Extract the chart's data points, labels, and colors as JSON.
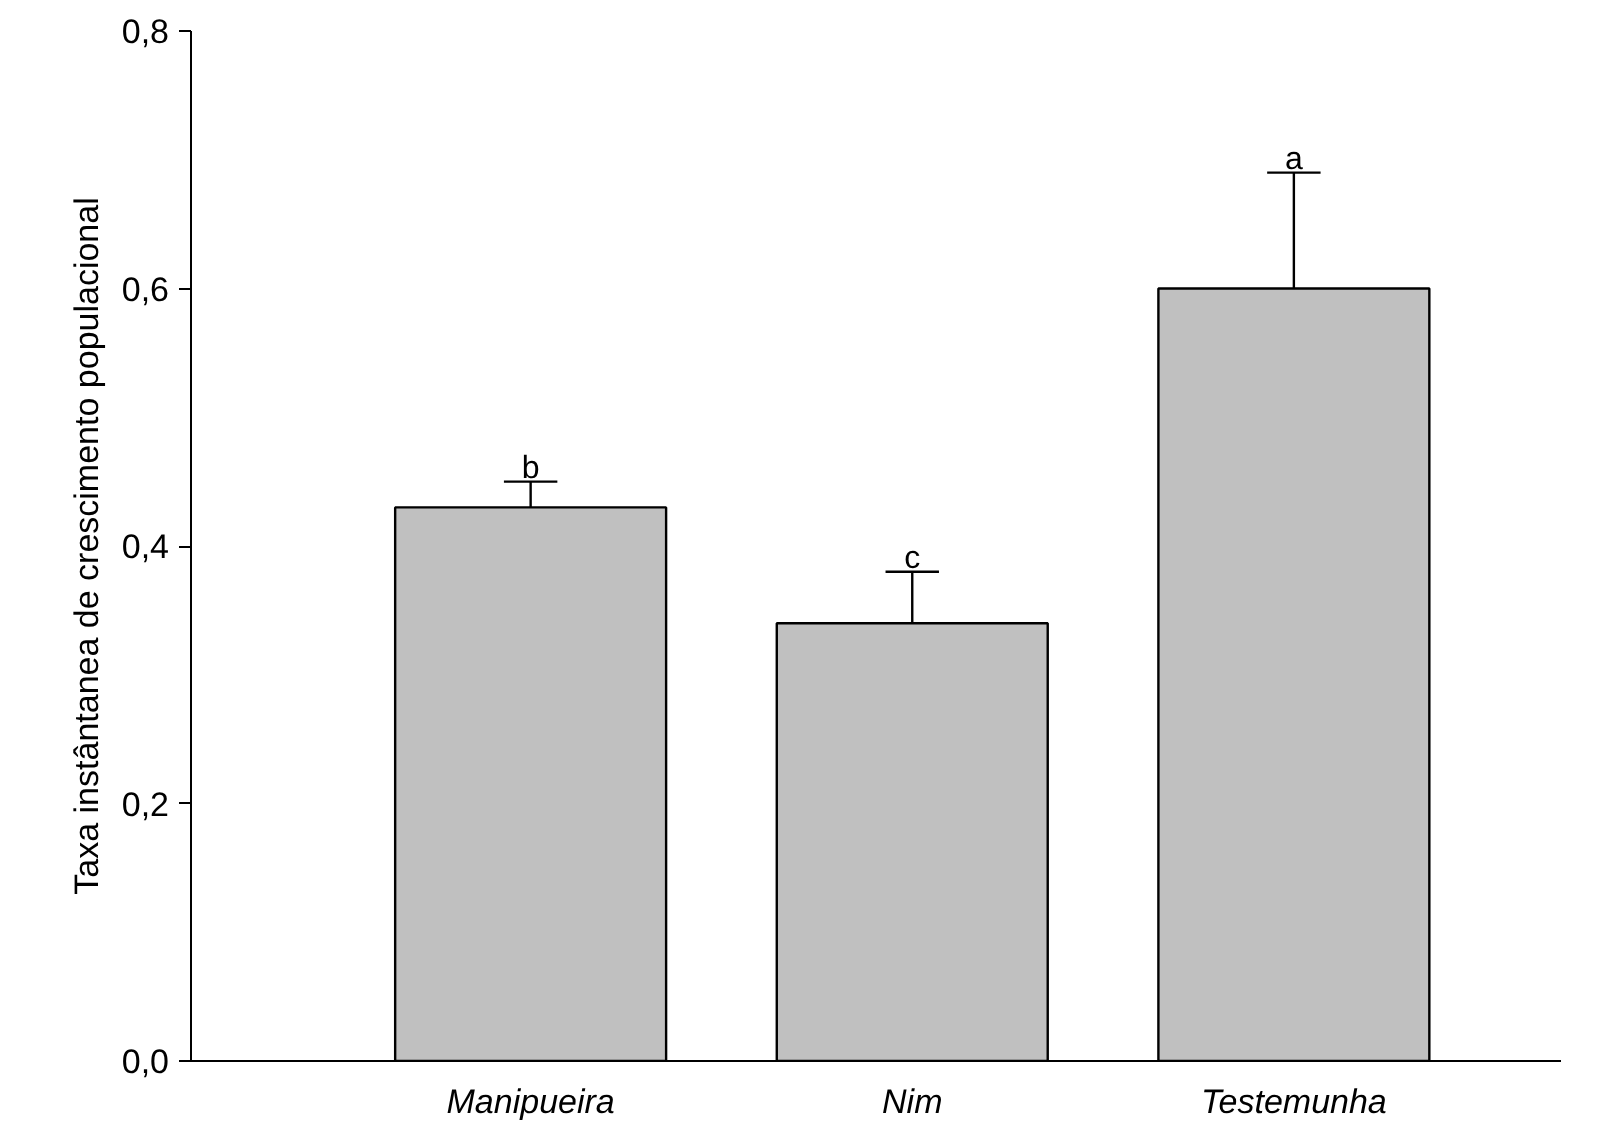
{
  "chart_data": {
    "type": "bar",
    "ylabel": "Taxa instântanea de crescimento populacional",
    "categories": [
      "Manipueira",
      "Nim",
      "Testemunha"
    ],
    "values": [
      0.43,
      0.34,
      0.6
    ],
    "color": "#c0c0c0",
    "errors": [
      [
        0.43,
        0.45
      ],
      [
        0.34,
        0.38
      ],
      [
        0.6,
        0.69
      ]
    ],
    "ylim": [
      0,
      0.8
    ],
    "yticks": [
      {
        "value": 0,
        "label": "0,0"
      },
      {
        "value": 0.2,
        "label": "0,2"
      },
      {
        "value": 0.4,
        "label": "0,4"
      },
      {
        "value": 0.6,
        "label": "0,6"
      },
      {
        "value": 0.8,
        "label": "0,8"
      }
    ],
    "annotations": [
      {
        "text": "b",
        "x": "Manipueira",
        "y": 0.45
      },
      {
        "text": "c",
        "x": "Nim",
        "y": 0.38
      },
      {
        "text": "a",
        "x": "Testemunha",
        "y": 0.69
      }
    ],
    "grid": false
  }
}
